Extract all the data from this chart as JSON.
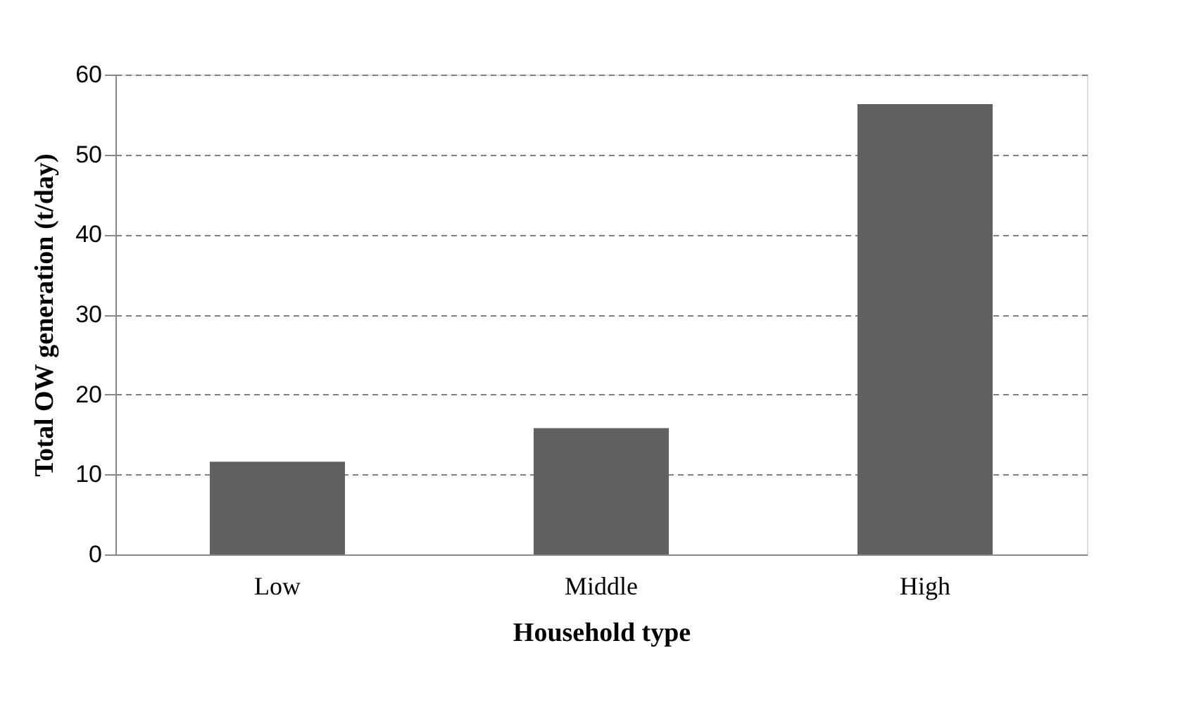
{
  "chart_data": {
    "type": "bar",
    "xlabel": "Household type",
    "ylabel": "Total OW generation (t/day)",
    "categories": [
      "Low",
      "Middle",
      "High"
    ],
    "values": [
      11.6,
      15.8,
      56.3
    ],
    "color": "#606060",
    "ylim": [
      0,
      60
    ],
    "yticks": [
      0,
      10,
      20,
      30,
      40,
      50,
      60
    ],
    "grid": "y"
  }
}
